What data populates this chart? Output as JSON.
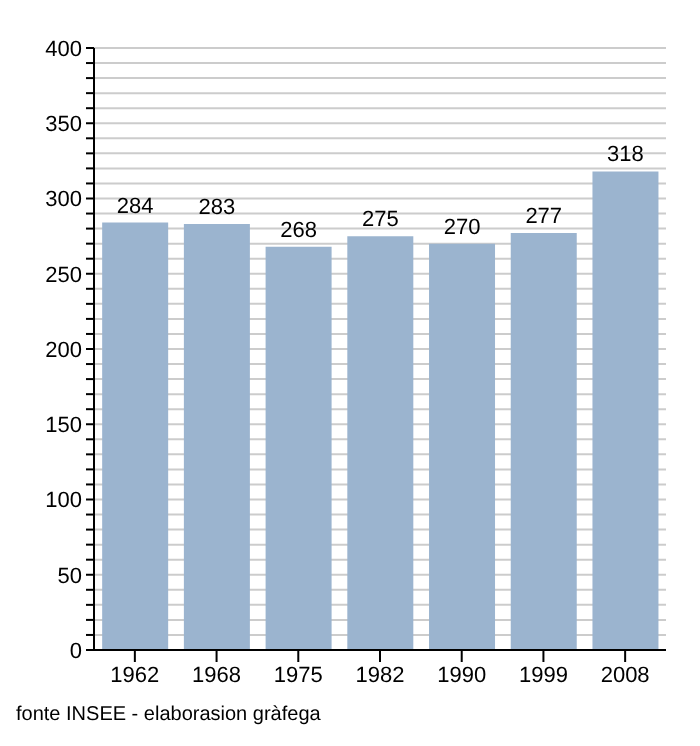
{
  "chart_data": {
    "type": "bar",
    "categories": [
      "1962",
      "1968",
      "1975",
      "1982",
      "1990",
      "1999",
      "2008"
    ],
    "values": [
      284,
      283,
      268,
      275,
      270,
      277,
      318
    ],
    "color": "#9bb4cf",
    "ylim": [
      0,
      400
    ],
    "yticks": [
      0,
      {
        "value": 10,
        "label": null
      },
      {
        "value": 20,
        "label": null
      },
      {
        "value": 30,
        "label": null
      },
      {
        "value": 40,
        "label": null
      },
      50,
      {
        "value": 60,
        "label": null
      },
      {
        "value": 70,
        "label": null
      },
      {
        "value": 80,
        "label": null
      },
      {
        "value": 90,
        "label": null
      },
      100,
      {
        "value": 110,
        "label": null
      },
      {
        "value": 120,
        "label": null
      },
      {
        "value": 130,
        "label": null
      },
      {
        "value": 140,
        "label": null
      },
      150,
      {
        "value": 160,
        "label": null
      },
      {
        "value": 170,
        "label": null
      },
      {
        "value": 180,
        "label": null
      },
      {
        "value": 190,
        "label": null
      },
      200,
      {
        "value": 210,
        "label": null
      },
      {
        "value": 220,
        "label": null
      },
      {
        "value": 230,
        "label": null
      },
      {
        "value": 240,
        "label": null
      },
      250,
      {
        "value": 260,
        "label": null
      },
      {
        "value": 270,
        "label": null
      },
      {
        "value": 280,
        "label": null
      },
      {
        "value": 290,
        "label": null
      },
      300,
      {
        "value": 310,
        "label": null
      },
      {
        "value": 320,
        "label": null
      },
      {
        "value": 330,
        "label": null
      },
      {
        "value": 340,
        "label": null
      },
      350,
      {
        "value": 360,
        "label": null
      },
      {
        "value": 370,
        "label": null
      },
      {
        "value": 380,
        "label": null
      },
      {
        "value": 390,
        "label": null
      },
      400
    ],
    "grid": "y",
    "data_labels": true,
    "annotations": [
      "fonte INSEE - elaborasion gràfega"
    ]
  }
}
